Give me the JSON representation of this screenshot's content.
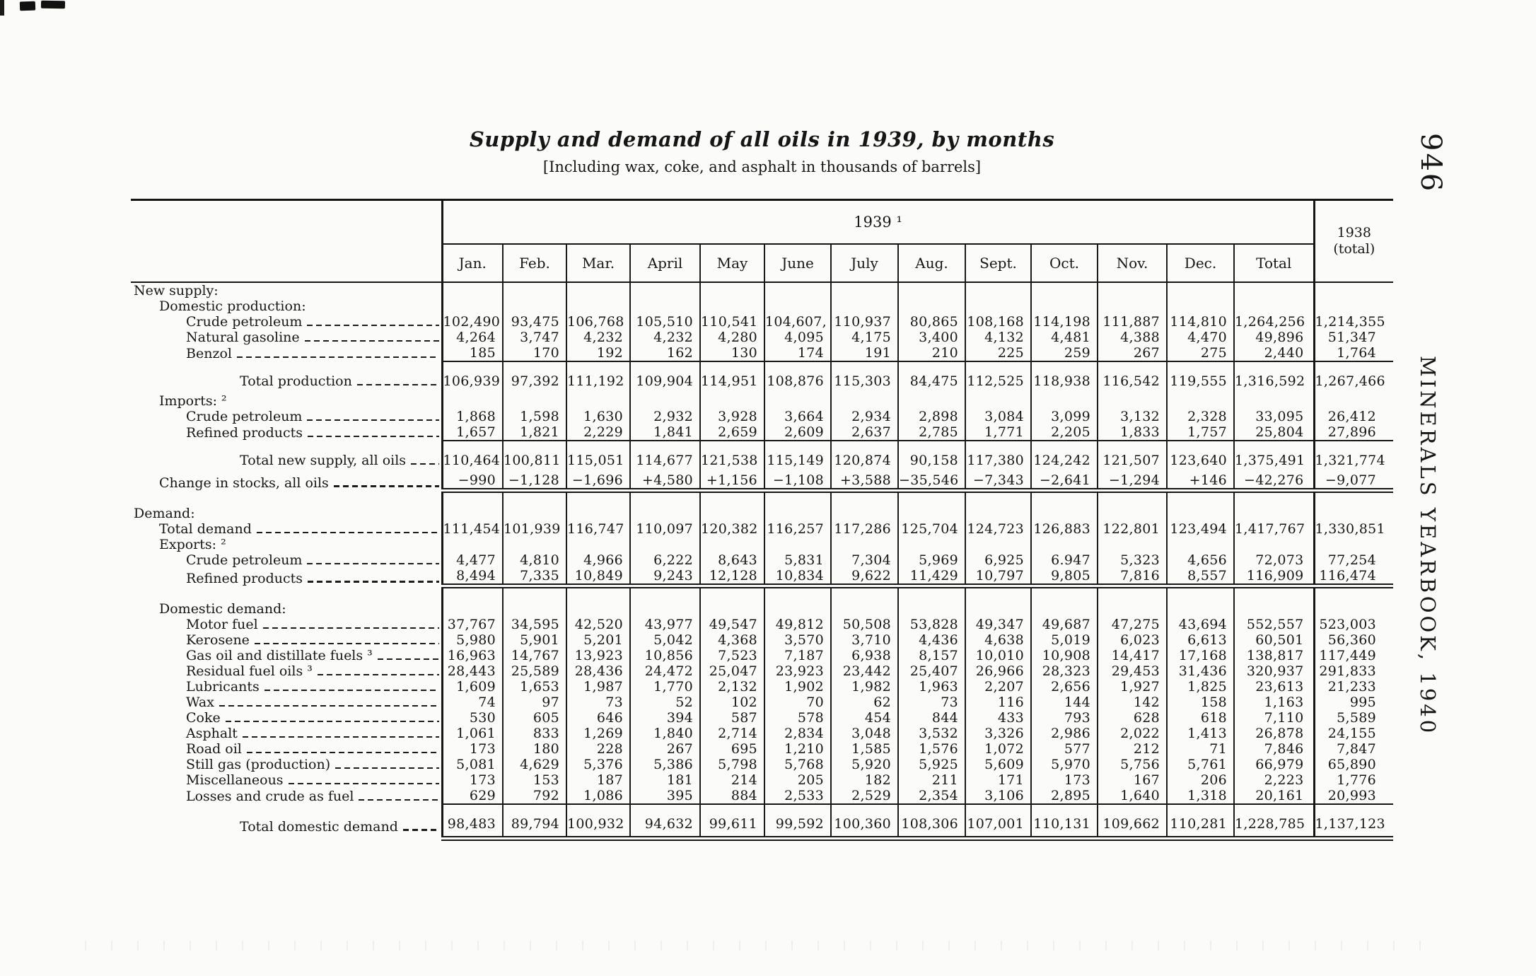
{
  "page": {
    "page_number": "946",
    "running_head": "MINERALS YEARBOOK, 1940",
    "title": "Supply and demand of all oils in 1939, by months",
    "subtitle": "[Including wax, coke, and asphalt in thousands of barrels]"
  },
  "table": {
    "year_header": "1939 ¹",
    "prior_year_line1": "1938",
    "prior_year_line2": "(total)",
    "columns": [
      "Jan.",
      "Feb.",
      "Mar.",
      "April",
      "May",
      "June",
      "July",
      "Aug.",
      "Sept.",
      "Oct.",
      "Nov.",
      "Dec.",
      "Total"
    ],
    "rows": [
      {
        "t": "sec",
        "label": "New supply:",
        "indent": 0
      },
      {
        "t": "sec",
        "label": "Domestic production:",
        "indent": 1
      },
      {
        "t": "data",
        "label": "Crude petroleum",
        "indent": 2,
        "leader": true,
        "values": [
          "102,490",
          "93,475",
          "106,768",
          "105,510",
          "110,541",
          "104,607,",
          "110,937",
          "80,865",
          "108,168",
          "114,198",
          "111,887",
          "114,810",
          "1,264,256",
          "1,214,355"
        ]
      },
      {
        "t": "data",
        "label": "Natural gasoline",
        "indent": 2,
        "leader": true,
        "values": [
          "4,264",
          "3,747",
          "4,232",
          "4,232",
          "4,280",
          "4,095",
          "4,175",
          "3,400",
          "4,132",
          "4,481",
          "4,388",
          "4,470",
          "49,896",
          "51,347"
        ]
      },
      {
        "t": "data",
        "label": "Benzol",
        "indent": 2,
        "leader": true,
        "values": [
          "185",
          "170",
          "192",
          "162",
          "130",
          "174",
          "191",
          "210",
          "225",
          "259",
          "267",
          "275",
          "2,440",
          "1,764"
        ]
      },
      {
        "t": "rule",
        "rule": "single"
      },
      {
        "t": "total",
        "label": "Total production",
        "indent": 3,
        "leader": true,
        "values": [
          "106,939",
          "97,392",
          "111,192",
          "109,904",
          "114,951",
          "108,876",
          "115,303",
          "84,475",
          "112,525",
          "118,938",
          "116,542",
          "119,555",
          "1,316,592",
          "1,267,466"
        ]
      },
      {
        "t": "sec",
        "label": "Imports: ²",
        "indent": 1
      },
      {
        "t": "data",
        "label": "Crude petroleum",
        "indent": 2,
        "leader": true,
        "values": [
          "1,868",
          "1,598",
          "1,630",
          "2,932",
          "3,928",
          "3,664",
          "2,934",
          "2,898",
          "3,084",
          "3,099",
          "3,132",
          "2,328",
          "33,095",
          "26,412"
        ]
      },
      {
        "t": "data",
        "label": "Refined products",
        "indent": 2,
        "leader": true,
        "values": [
          "1,657",
          "1,821",
          "2,229",
          "1,841",
          "2,659",
          "2,609",
          "2,637",
          "2,785",
          "1,771",
          "2,205",
          "1,833",
          "1,757",
          "25,804",
          "27,896"
        ]
      },
      {
        "t": "rule",
        "rule": "single"
      },
      {
        "t": "total",
        "label": "Total new supply, all oils",
        "indent": 3,
        "leader": true,
        "values": [
          "110,464",
          "100,811",
          "115,051",
          "114,677",
          "121,538",
          "115,149",
          "120,874",
          "90,158",
          "117,380",
          "124,242",
          "121,507",
          "123,640",
          "1,375,491",
          "1,321,774"
        ]
      },
      {
        "t": "data",
        "label": "Change in stocks, all oils",
        "indent": 1,
        "leader": true,
        "values": [
          "−990",
          "−1,128",
          "−1,696",
          "+4,580",
          "+1,156",
          "−1,108",
          "+3,588",
          "−35,546",
          "−7,343",
          "−2,641",
          "−1,294",
          "+146",
          "−42,276",
          "−9,077"
        ]
      },
      {
        "t": "rule",
        "rule": "double"
      },
      {
        "t": "sec",
        "label": "Demand:",
        "indent": 0,
        "gap": true
      },
      {
        "t": "data",
        "label": "Total demand",
        "indent": 1,
        "leader": true,
        "values": [
          "111,454",
          "101,939",
          "116,747",
          "110,097",
          "120,382",
          "116,257",
          "117,286",
          "125,704",
          "124,723",
          "126,883",
          "122,801",
          "123,494",
          "1,417,767",
          "1,330,851"
        ]
      },
      {
        "t": "sec",
        "label": "Exports: ²",
        "indent": 1
      },
      {
        "t": "data",
        "label": "Crude petroleum",
        "indent": 2,
        "leader": true,
        "values": [
          "4,477",
          "4,810",
          "4,966",
          "6,222",
          "8,643",
          "5,831",
          "7,304",
          "5,969",
          "6,925",
          "6.947",
          "5,323",
          "4,656",
          "72,073",
          "77,254"
        ]
      },
      {
        "t": "data",
        "label": "Refined products",
        "indent": 2,
        "leader": true,
        "values": [
          "8,494",
          "7,335",
          "10,849",
          "9,243",
          "12,128",
          "10,834",
          "9,622",
          "11,429",
          "10,797",
          "9,805",
          "7,816",
          "8,557",
          "116,909",
          "116,474"
        ]
      },
      {
        "t": "rule",
        "rule": "double"
      },
      {
        "t": "sec",
        "label": "Domestic demand:",
        "indent": 1,
        "gap": true
      },
      {
        "t": "data",
        "label": "Motor fuel",
        "indent": 2,
        "leader": true,
        "values": [
          "37,767",
          "34,595",
          "42,520",
          "43,977",
          "49,547",
          "49,812",
          "50,508",
          "53,828",
          "49,347",
          "49,687",
          "47,275",
          "43,694",
          "552,557",
          "523,003"
        ]
      },
      {
        "t": "data",
        "label": "Kerosene",
        "indent": 2,
        "leader": true,
        "values": [
          "5,980",
          "5,901",
          "5,201",
          "5,042",
          "4,368",
          "3,570",
          "3,710",
          "4,436",
          "4,638",
          "5,019",
          "6,023",
          "6,613",
          "60,501",
          "56,360"
        ]
      },
      {
        "t": "data",
        "label": "Gas oil and distillate fuels ³",
        "indent": 2,
        "leader": true,
        "values": [
          "16,963",
          "14,767",
          "13,923",
          "10,856",
          "7,523",
          "7,187",
          "6,938",
          "8,157",
          "10,010",
          "10,908",
          "14,417",
          "17,168",
          "138,817",
          "117,449"
        ]
      },
      {
        "t": "data",
        "label": "Residual fuel oils ³",
        "indent": 2,
        "leader": true,
        "values": [
          "28,443",
          "25,589",
          "28,436",
          "24,472",
          "25,047",
          "23,923",
          "23,442",
          "25,407",
          "26,966",
          "28,323",
          "29,453",
          "31,436",
          "320,937",
          "291,833"
        ]
      },
      {
        "t": "data",
        "label": "Lubricants",
        "indent": 2,
        "leader": true,
        "values": [
          "1,609",
          "1,653",
          "1,987",
          "1,770",
          "2,132",
          "1,902",
          "1,982",
          "1,963",
          "2,207",
          "2,656",
          "1,927",
          "1,825",
          "23,613",
          "21,233"
        ]
      },
      {
        "t": "data",
        "label": "Wax",
        "indent": 2,
        "leader": true,
        "values": [
          "74",
          "97",
          "73",
          "52",
          "102",
          "70",
          "62",
          "73",
          "116",
          "144",
          "142",
          "158",
          "1,163",
          "995"
        ]
      },
      {
        "t": "data",
        "label": "Coke",
        "indent": 2,
        "leader": true,
        "values": [
          "530",
          "605",
          "646",
          "394",
          "587",
          "578",
          "454",
          "844",
          "433",
          "793",
          "628",
          "618",
          "7,110",
          "5,589"
        ]
      },
      {
        "t": "data",
        "label": "Asphalt",
        "indent": 2,
        "leader": true,
        "values": [
          "1,061",
          "833",
          "1,269",
          "1,840",
          "2,714",
          "2,834",
          "3,048",
          "3,532",
          "3,326",
          "2,986",
          "2,022",
          "1,413",
          "26,878",
          "24,155"
        ]
      },
      {
        "t": "data",
        "label": "Road oil",
        "indent": 2,
        "leader": true,
        "values": [
          "173",
          "180",
          "228",
          "267",
          "695",
          "1,210",
          "1,585",
          "1,576",
          "1,072",
          "577",
          "212",
          "71",
          "7,846",
          "7,847"
        ]
      },
      {
        "t": "data",
        "label": "Still gas (production)",
        "indent": 2,
        "leader": true,
        "values": [
          "5,081",
          "4,629",
          "5,376",
          "5,386",
          "5,798",
          "5,768",
          "5,920",
          "5,925",
          "5,609",
          "5,970",
          "5,756",
          "5,761",
          "66,979",
          "65,890"
        ]
      },
      {
        "t": "data",
        "label": "Miscellaneous",
        "indent": 2,
        "leader": true,
        "values": [
          "173",
          "153",
          "187",
          "181",
          "214",
          "205",
          "182",
          "211",
          "171",
          "173",
          "167",
          "206",
          "2,223",
          "1,776"
        ]
      },
      {
        "t": "data",
        "label": "Losses and crude as fuel",
        "indent": 2,
        "leader": true,
        "values": [
          "629",
          "792",
          "1,086",
          "395",
          "884",
          "2,533",
          "2,529",
          "2,354",
          "3,106",
          "2,895",
          "1,640",
          "1,318",
          "20,161",
          "20,993"
        ]
      },
      {
        "t": "rule",
        "rule": "single"
      },
      {
        "t": "total",
        "label": "Total domestic demand",
        "indent": 3,
        "leader": true,
        "values": [
          "98,483",
          "89,794",
          "100,932",
          "94,632",
          "99,611",
          "99,592",
          "100,360",
          "108,306",
          "107,001",
          "110,131",
          "109,662",
          "110,281",
          "1,228,785",
          "1,137,123"
        ]
      },
      {
        "t": "rule",
        "rule": "double",
        "last": true
      }
    ]
  }
}
